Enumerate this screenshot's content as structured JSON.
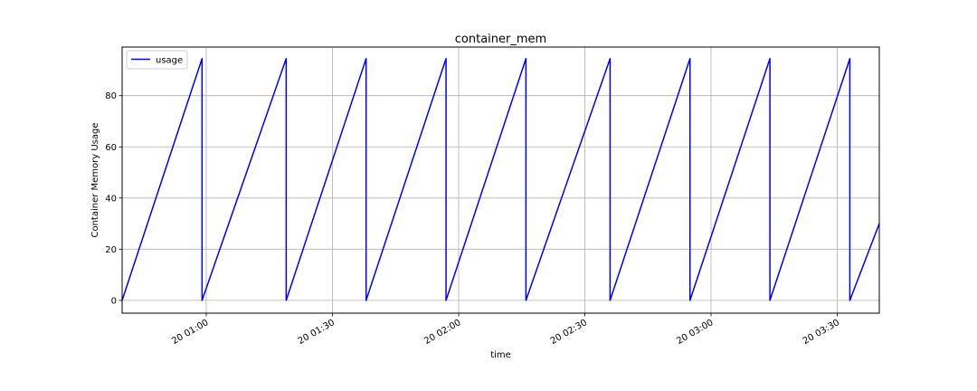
{
  "chart_data": {
    "type": "line",
    "title": "container_mem",
    "xlabel": "time",
    "ylabel": "Container Memory Usage",
    "x_axis_type": "time",
    "xlim": [
      "2000-01-20 00:40",
      "2000-01-20 03:40"
    ],
    "ylim": [
      -5,
      99
    ],
    "x_ticks": [
      {
        "value": "2000-01-20 01:00",
        "label": "20 01:00"
      },
      {
        "value": "2000-01-20 01:30",
        "label": "20 01:30"
      },
      {
        "value": "2000-01-20 02:00",
        "label": "20 02:00"
      },
      {
        "value": "2000-01-20 02:30",
        "label": "20 02:30"
      },
      {
        "value": "2000-01-20 03:00",
        "label": "20 03:00"
      },
      {
        "value": "2000-01-20 03:30",
        "label": "20 03:30"
      }
    ],
    "y_ticks": [
      0,
      20,
      40,
      60,
      80
    ],
    "grid": true,
    "legend_position": "top-left",
    "series": [
      {
        "name": "usage",
        "color": "#0000ff",
        "points": [
          {
            "x": "2000-01-20 00:40",
            "y": 0
          },
          {
            "x": "2000-01-20 00:59",
            "y": 94.5
          },
          {
            "x": "2000-01-20 00:59",
            "y": 0
          },
          {
            "x": "2000-01-20 01:19",
            "y": 94.5
          },
          {
            "x": "2000-01-20 01:19",
            "y": 0
          },
          {
            "x": "2000-01-20 01:38",
            "y": 94.5
          },
          {
            "x": "2000-01-20 01:38",
            "y": 0
          },
          {
            "x": "2000-01-20 01:57",
            "y": 94.5
          },
          {
            "x": "2000-01-20 01:57",
            "y": 0
          },
          {
            "x": "2000-01-20 02:16",
            "y": 94.5
          },
          {
            "x": "2000-01-20 02:16",
            "y": 0
          },
          {
            "x": "2000-01-20 02:36",
            "y": 94.5
          },
          {
            "x": "2000-01-20 02:36",
            "y": 0
          },
          {
            "x": "2000-01-20 02:55",
            "y": 94.5
          },
          {
            "x": "2000-01-20 02:55",
            "y": 0
          },
          {
            "x": "2000-01-20 03:14",
            "y": 94.5
          },
          {
            "x": "2000-01-20 03:14",
            "y": 0
          },
          {
            "x": "2000-01-20 03:33",
            "y": 94.5
          },
          {
            "x": "2000-01-20 03:33",
            "y": 0
          },
          {
            "x": "2000-01-20 03:40",
            "y": 30
          }
        ]
      }
    ]
  }
}
